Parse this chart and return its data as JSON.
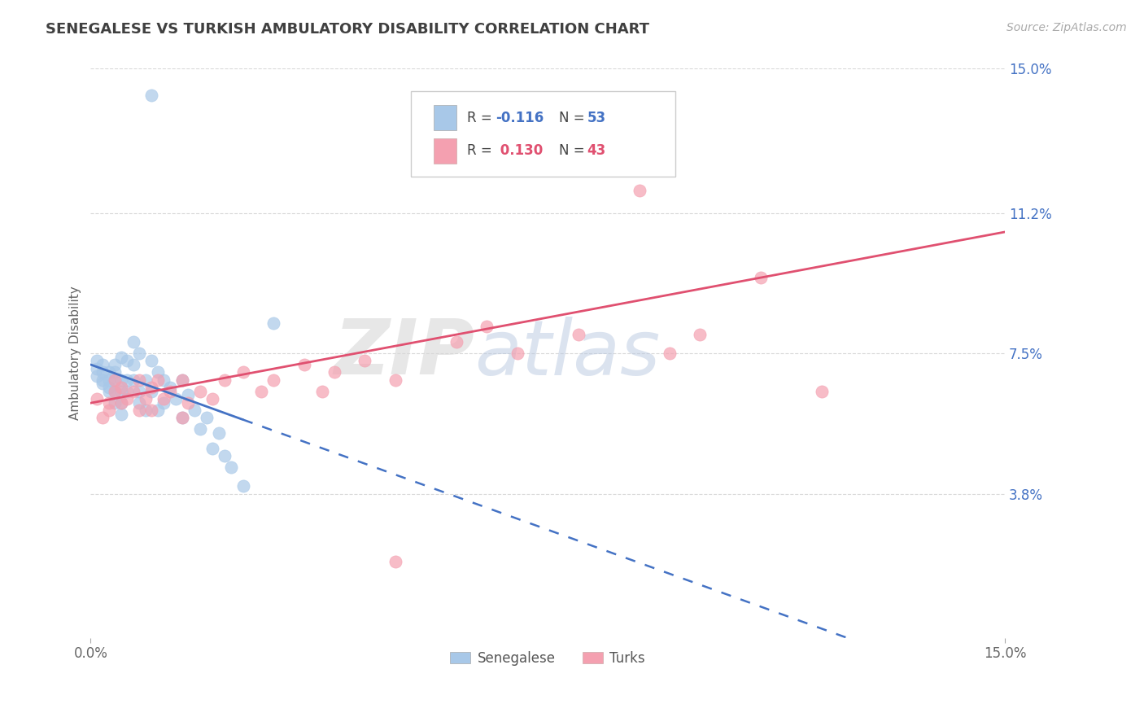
{
  "title": "SENEGALESE VS TURKISH AMBULATORY DISABILITY CORRELATION CHART",
  "source": "Source: ZipAtlas.com",
  "ylabel": "Ambulatory Disability",
  "xlim": [
    0.0,
    0.15
  ],
  "ylim": [
    0.0,
    0.15
  ],
  "xtick_labels": [
    "0.0%",
    "15.0%"
  ],
  "xtick_vals": [
    0.0,
    0.15
  ],
  "ytick_labels_right": [
    "15.0%",
    "11.2%",
    "7.5%",
    "3.8%"
  ],
  "ytick_vals_right": [
    0.15,
    0.112,
    0.075,
    0.038
  ],
  "watermark_zip": "ZIP",
  "watermark_atlas": "atlas",
  "senegalese_color": "#a8c8e8",
  "turks_color": "#f4a0b0",
  "trend_senegalese_color": "#4472c4",
  "trend_turks_color": "#e05070",
  "background_color": "#ffffff",
  "grid_color": "#d0d0d0",
  "title_color": "#404040",
  "right_tick_color": "#4472c4",
  "legend_box_color": "#e8e8e8",
  "r_sen": "-0.116",
  "n_sen": "53",
  "r_turk": "0.130",
  "n_turk": "43",
  "senegalese_label": "Senegalese",
  "turks_label": "Turks"
}
